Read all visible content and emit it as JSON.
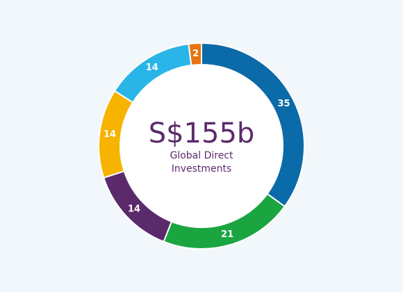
{
  "chart_data": {
    "type": "pie",
    "categories": [
      "",
      "",
      "",
      "",
      "",
      ""
    ],
    "values": [
      35,
      21,
      14,
      14,
      14,
      2
    ],
    "colors": [
      "#0b6aa8",
      "#1aa541",
      "#5b2a6b",
      "#f6b400",
      "#29b5e8",
      "#e8740f"
    ],
    "center_value": "S$155b",
    "center_label_line1": "Global Direct",
    "center_label_line2": "Investments",
    "title": "",
    "style": "donut",
    "start": "top, clockwise"
  }
}
